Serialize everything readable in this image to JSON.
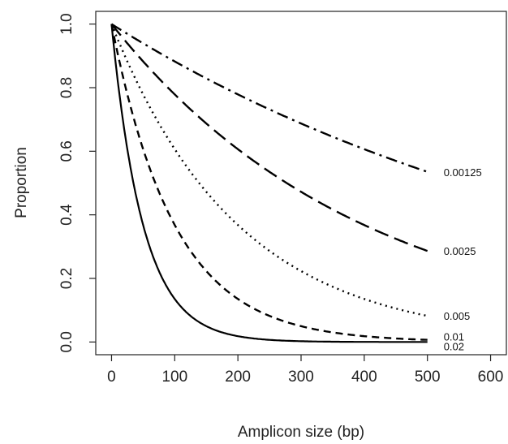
{
  "chart_data": {
    "type": "line",
    "title": "",
    "xlabel": "Amplicon size (bp)",
    "ylabel": "Proportion",
    "xlim": [
      -25,
      625
    ],
    "ylim": [
      -0.04,
      1.04
    ],
    "xticks": [
      0,
      100,
      200,
      300,
      400,
      500,
      600
    ],
    "yticks": [
      0.0,
      0.2,
      0.4,
      0.6,
      0.8,
      1.0
    ],
    "ytick_labels": [
      "0.0",
      "0.2",
      "0.4",
      "0.6",
      "0.8",
      "1.0"
    ],
    "grid": false,
    "legend": "none",
    "x": [
      0,
      25,
      50,
      75,
      100,
      150,
      200,
      250,
      300,
      350,
      400,
      450,
      500
    ],
    "series": [
      {
        "name": "0.00125",
        "line_style": "dash-dot",
        "values": [
          1.0,
          0.969,
          0.939,
          0.911,
          0.882,
          0.829,
          0.779,
          0.732,
          0.687,
          0.646,
          0.607,
          0.57,
          0.535
        ]
      },
      {
        "name": "0.0025",
        "line_style": "long-dash",
        "values": [
          1.0,
          0.939,
          0.882,
          0.829,
          0.779,
          0.687,
          0.607,
          0.535,
          0.472,
          0.417,
          0.368,
          0.325,
          0.287
        ]
      },
      {
        "name": "0.005",
        "line_style": "dotted",
        "values": [
          1.0,
          0.882,
          0.779,
          0.687,
          0.607,
          0.472,
          0.368,
          0.287,
          0.223,
          0.174,
          0.135,
          0.105,
          0.082
        ]
      },
      {
        "name": "0.01",
        "line_style": "dashed",
        "values": [
          1.0,
          0.779,
          0.607,
          0.472,
          0.368,
          0.223,
          0.135,
          0.082,
          0.05,
          0.03,
          0.018,
          0.011,
          0.007
        ]
      },
      {
        "name": "0.02",
        "line_style": "solid",
        "values": [
          1.0,
          0.607,
          0.368,
          0.223,
          0.135,
          0.05,
          0.018,
          0.007,
          0.002,
          0.001,
          0.0,
          0.0,
          0.0
        ]
      }
    ],
    "colors": {
      "line": "#000000",
      "axis": "#222222",
      "text": "#222222"
    }
  }
}
